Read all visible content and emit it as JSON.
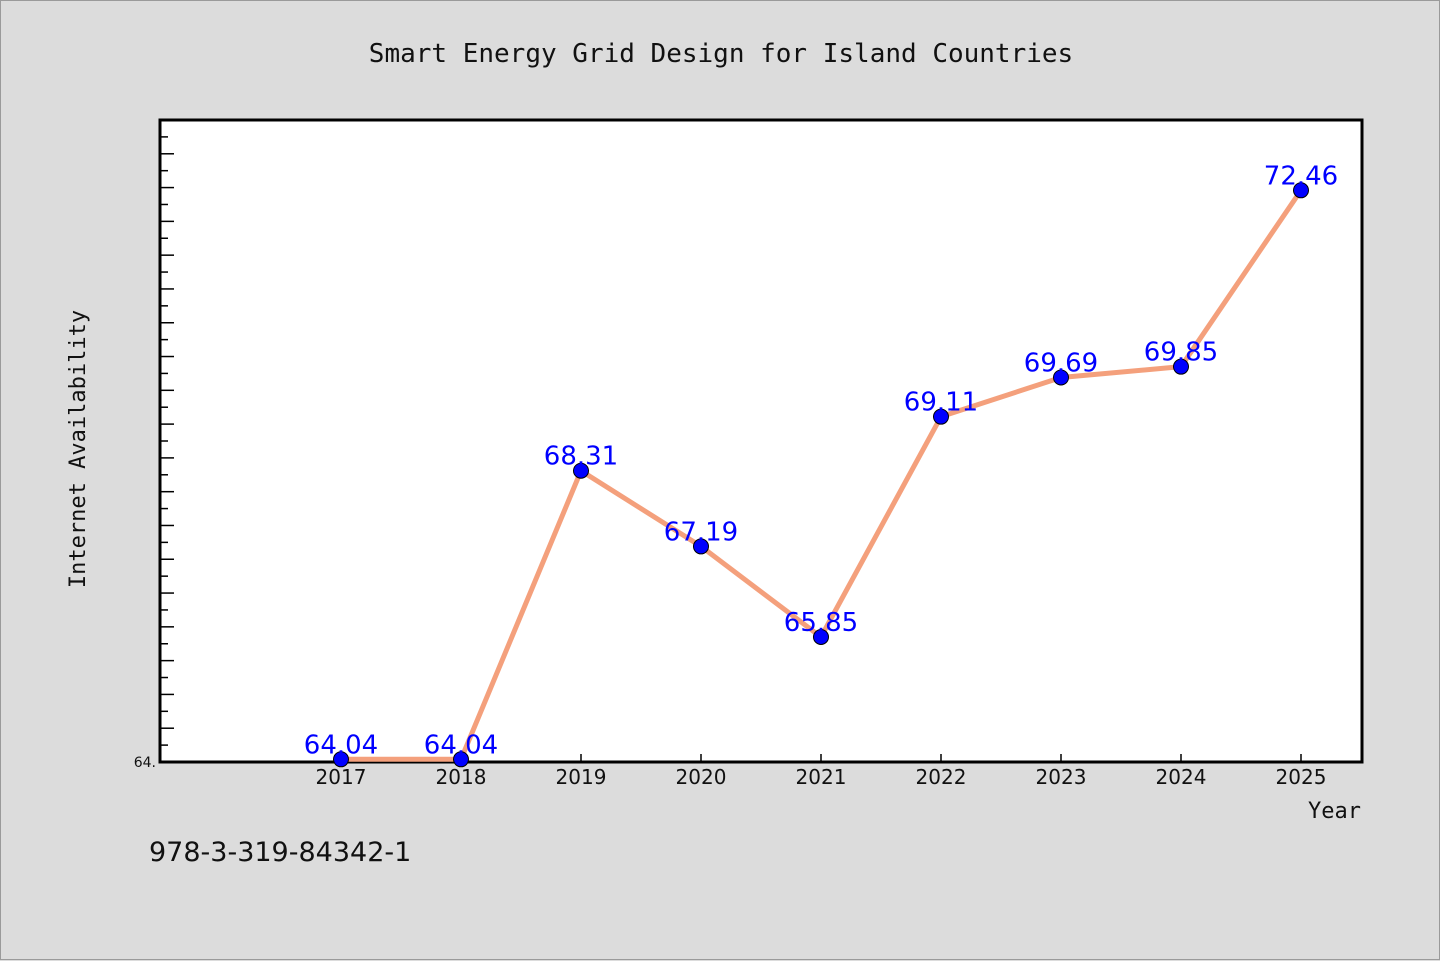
{
  "chart_data": {
    "type": "line",
    "title": "Smart Energy Grid Design for Island Countries",
    "xlabel": "Year",
    "ylabel": "Internet Availability",
    "categories": [
      "2017",
      "2018",
      "2019",
      "2020",
      "2021",
      "2022",
      "2023",
      "2024",
      "2025"
    ],
    "series": [
      {
        "values": [
          64.04,
          64.04,
          68.31,
          67.19,
          65.85,
          69.11,
          69.69,
          69.85,
          72.46
        ],
        "data_labels": [
          "64.04",
          "64.04",
          "68.31",
          "67.19",
          "65.85",
          "69.11",
          "69.69",
          "69.85",
          "72.46"
        ],
        "line_color": "#f4a07c",
        "marker_color": "#0000ff"
      }
    ],
    "ylim": [
      64.0,
      73.5
    ],
    "y_tick_label": "64.",
    "grid": false,
    "legend": "none"
  },
  "footer": {
    "code": "978-3-319-84342-1"
  }
}
